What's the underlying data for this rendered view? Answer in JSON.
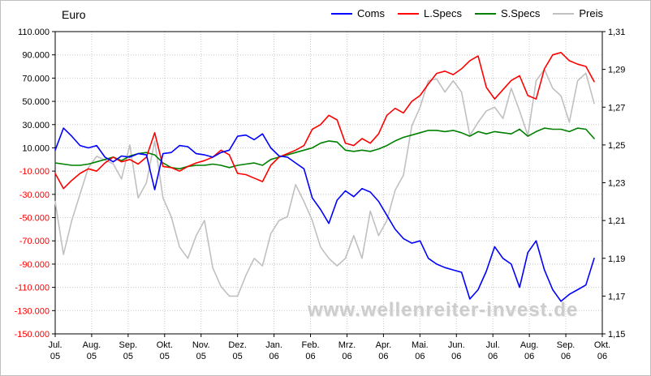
{
  "title": "Euro",
  "watermark": "www.wellenreiter-invest.de",
  "legend": {
    "items": [
      {
        "label": "Coms",
        "color": "#0000ff"
      },
      {
        "label": "L.Specs",
        "color": "#ff0000"
      },
      {
        "label": "S.Specs",
        "color": "#008000"
      },
      {
        "label": "Preis",
        "color": "#c0c0c0"
      }
    ]
  },
  "chart_data": {
    "type": "line",
    "title": "Euro",
    "x_months": [
      {
        "m": "Jul.",
        "y": "05"
      },
      {
        "m": "Aug.",
        "y": "05"
      },
      {
        "m": "Sep.",
        "y": "05"
      },
      {
        "m": "Okt.",
        "y": "05"
      },
      {
        "m": "Nov.",
        "y": "05"
      },
      {
        "m": "Dez.",
        "y": "05"
      },
      {
        "m": "Jan.",
        "y": "06"
      },
      {
        "m": "Feb.",
        "y": "06"
      },
      {
        "m": "Mrz.",
        "y": "06"
      },
      {
        "m": "Apr.",
        "y": "06"
      },
      {
        "m": "Mai.",
        "y": "06"
      },
      {
        "m": "Jun.",
        "y": "06"
      },
      {
        "m": "Jul.",
        "y": "06"
      },
      {
        "m": "Aug.",
        "y": "06"
      },
      {
        "m": "Sep.",
        "y": "06"
      },
      {
        "m": "Okt.",
        "y": "06"
      }
    ],
    "left_axis": {
      "min": -150000,
      "max": 110000,
      "step": 20000,
      "labels": [
        "110.000",
        "90.000",
        "70.000",
        "50.000",
        "30.000",
        "10.000",
        "-10.000",
        "-30.000",
        "-50.000",
        "-70.000",
        "-90.000",
        "-110.000",
        "-130.000",
        "-150.000"
      ],
      "negative_label_color": "#ff0000",
      "positive_label_color": "#000000"
    },
    "right_axis": {
      "min": 1.15,
      "max": 1.31,
      "labels": [
        "1,31",
        "1,29",
        "1,27",
        "1,25",
        "1,23",
        "1,21",
        "1,19",
        "1,17",
        "1,15"
      ]
    },
    "grid": true,
    "grid_color": "#c8c8c8",
    "series": [
      {
        "name": "Coms",
        "color": "#0000ff",
        "axis": "left",
        "values": [
          8000,
          27000,
          20000,
          12000,
          10000,
          12000,
          2000,
          -2000,
          3000,
          2000,
          5000,
          4000,
          -26000,
          5000,
          6000,
          12000,
          11000,
          5000,
          4000,
          2000,
          6000,
          8000,
          20000,
          21000,
          17000,
          22000,
          10000,
          3000,
          2000,
          -3000,
          -8000,
          -33000,
          -43000,
          -55000,
          -35000,
          -27000,
          -32000,
          -25000,
          -28000,
          -36000,
          -48000,
          -60000,
          -68000,
          -72000,
          -70000,
          -85000,
          -90000,
          -93000,
          -95000,
          -97000,
          -120000,
          -112000,
          -96000,
          -75000,
          -85000,
          -90000,
          -110000,
          -80000,
          -70000,
          -95000,
          -112000,
          -122000,
          -116000,
          -112000,
          -108000,
          -85000
        ]
      },
      {
        "name": "L.Specs",
        "color": "#ff0000",
        "axis": "left",
        "values": [
          -12000,
          -25000,
          -18000,
          -12000,
          -8000,
          -10000,
          -3000,
          2000,
          -2000,
          0,
          -4000,
          2000,
          23000,
          -6000,
          -7000,
          -10000,
          -6000,
          -3000,
          -1000,
          2000,
          8000,
          4000,
          -12000,
          -13000,
          -16000,
          -19000,
          -5000,
          2000,
          5000,
          8000,
          12000,
          26000,
          30000,
          38000,
          34000,
          14000,
          12000,
          18000,
          14000,
          22000,
          38000,
          44000,
          40000,
          50000,
          55000,
          65000,
          74000,
          76000,
          73000,
          78000,
          85000,
          89000,
          62000,
          52000,
          60000,
          68000,
          72000,
          55000,
          52000,
          78000,
          90000,
          92000,
          85000,
          82000,
          80000,
          67000
        ]
      },
      {
        "name": "S.Specs",
        "color": "#008000",
        "axis": "left",
        "values": [
          -3000,
          -4000,
          -5000,
          -5000,
          -4000,
          -2000,
          0,
          2000,
          -1000,
          3000,
          5000,
          6000,
          4000,
          -3000,
          -7000,
          -8000,
          -6000,
          -5000,
          -5000,
          -4000,
          -5000,
          -7000,
          -5000,
          -4000,
          -3000,
          -5000,
          0,
          2000,
          4000,
          6000,
          8000,
          10000,
          14000,
          16000,
          15000,
          8000,
          7000,
          8000,
          7000,
          9000,
          12000,
          16000,
          19000,
          21000,
          23000,
          25000,
          25000,
          24000,
          25000,
          23000,
          20000,
          24000,
          22000,
          24000,
          23000,
          22000,
          26000,
          20000,
          24000,
          27000,
          26000,
          26000,
          24000,
          27000,
          26000,
          18000
        ]
      },
      {
        "name": "Preis",
        "color": "#c0c0c0",
        "axis": "right",
        "values": [
          1.22,
          1.192,
          1.21,
          1.224,
          1.238,
          1.244,
          1.242,
          1.24,
          1.232,
          1.25,
          1.222,
          1.23,
          1.252,
          1.222,
          1.212,
          1.196,
          1.19,
          1.202,
          1.21,
          1.185,
          1.175,
          1.17,
          1.17,
          1.181,
          1.19,
          1.186,
          1.203,
          1.21,
          1.212,
          1.229,
          1.22,
          1.21,
          1.196,
          1.19,
          1.186,
          1.19,
          1.202,
          1.19,
          1.215,
          1.202,
          1.21,
          1.226,
          1.234,
          1.26,
          1.27,
          1.284,
          1.285,
          1.278,
          1.284,
          1.278,
          1.255,
          1.262,
          1.268,
          1.27,
          1.264,
          1.28,
          1.268,
          1.255,
          1.284,
          1.29,
          1.28,
          1.276,
          1.262,
          1.284,
          1.288,
          1.272
        ]
      }
    ],
    "legend_position": "top-right"
  }
}
